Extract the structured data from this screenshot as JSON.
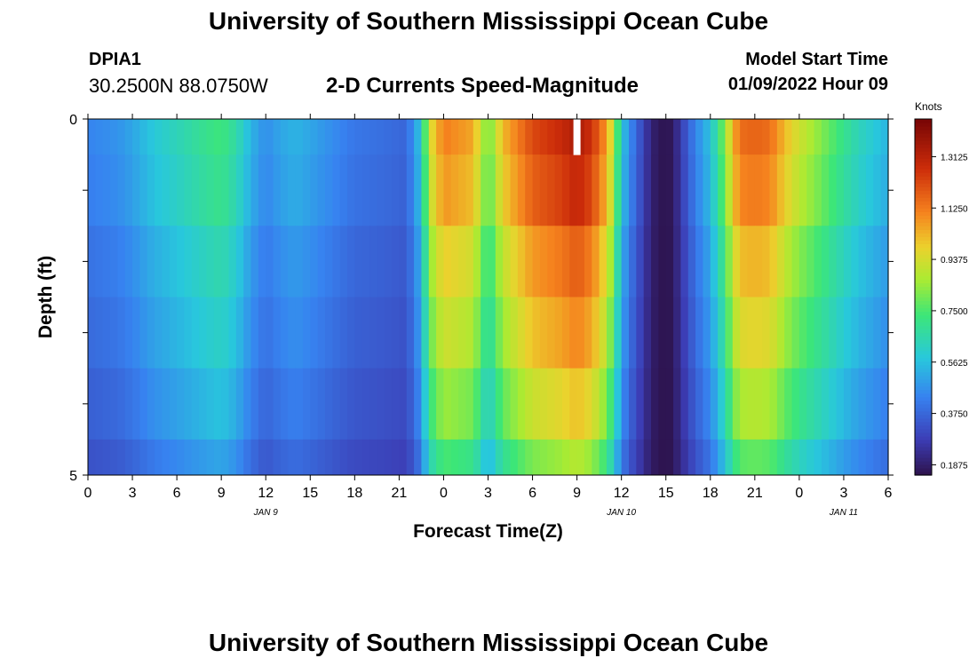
{
  "header": {
    "title": "University of Southern Mississippi Ocean Cube",
    "station": "DPIA1",
    "coords": "30.2500N  88.0750W",
    "subtitle": "2-D Currents Speed-Magnitude",
    "start_label": "Model Start Time",
    "start_value": "01/09/2022 Hour 09"
  },
  "footer": {
    "title": "University of Southern Mississippi Ocean Cube"
  },
  "chart_data": {
    "type": "heatmap",
    "title": "2-D Currents Speed-Magnitude",
    "xlabel": "Forecast Time(Z)",
    "ylabel": "Depth (ft)",
    "x_range": [
      0,
      54
    ],
    "y_range": [
      0,
      5
    ],
    "x_tick_labels": [
      "0",
      "3",
      "6",
      "9",
      "12",
      "15",
      "18",
      "21",
      "0",
      "3",
      "6",
      "9",
      "12",
      "15",
      "18",
      "21",
      "0",
      "3",
      "6"
    ],
    "y_tick_labels": [
      "0",
      "5"
    ],
    "date_labels": [
      {
        "label": "JAN 9",
        "hour": 12
      },
      {
        "label": "JAN 10",
        "hour": 36
      },
      {
        "label": "JAN 11",
        "hour": 51
      }
    ],
    "colorbar": {
      "label": "Knots",
      "range": [
        0.15,
        1.45
      ],
      "tick_values": [
        1.3125,
        1.125,
        0.9375,
        0.75,
        0.5625,
        0.375,
        0.1875
      ],
      "tick_labels": [
        "1.3125",
        "1.1250",
        "0.9375",
        "0.7500",
        "0.5625",
        "0.3750",
        "0.1875"
      ]
    },
    "marker": {
      "label": "model start",
      "hour": 33
    },
    "depth_layers": [
      "0.0-0.5",
      "0.5-1.5",
      "1.5-2.5",
      "2.5-3.5",
      "3.5-4.5",
      "4.5-5.0"
    ],
    "time_profile": {
      "hours": [
        0,
        2,
        3,
        4.5,
        6,
        8,
        9,
        10,
        11,
        12,
        13,
        14,
        15,
        17,
        18,
        20,
        21.5,
        22.5,
        23,
        24,
        26,
        27,
        28,
        30,
        32,
        33,
        34,
        35,
        35.5,
        36,
        36.5,
        37,
        37.5,
        38,
        39,
        39.5,
        40,
        41,
        42,
        43,
        43.5,
        44,
        45,
        46,
        46.5,
        47,
        48,
        50,
        51,
        52,
        53,
        54
      ],
      "values": [
        0.45,
        0.48,
        0.52,
        0.6,
        0.65,
        0.72,
        0.75,
        0.68,
        0.55,
        0.47,
        0.52,
        0.55,
        0.52,
        0.45,
        0.42,
        0.4,
        0.38,
        0.6,
        0.95,
        1.15,
        1.08,
        0.8,
        1.05,
        1.25,
        1.32,
        1.38,
        1.3,
        1.1,
        0.9,
        0.6,
        0.48,
        0.38,
        0.3,
        0.2,
        0.15,
        0.18,
        0.28,
        0.45,
        0.58,
        0.85,
        1.05,
        1.18,
        1.2,
        1.18,
        1.12,
        1.05,
        0.95,
        0.8,
        0.72,
        0.65,
        0.6,
        0.55
      ]
    },
    "depth_factors": [
      0.97,
      0.93,
      0.84,
      0.78,
      0.7,
      0.6
    ]
  }
}
